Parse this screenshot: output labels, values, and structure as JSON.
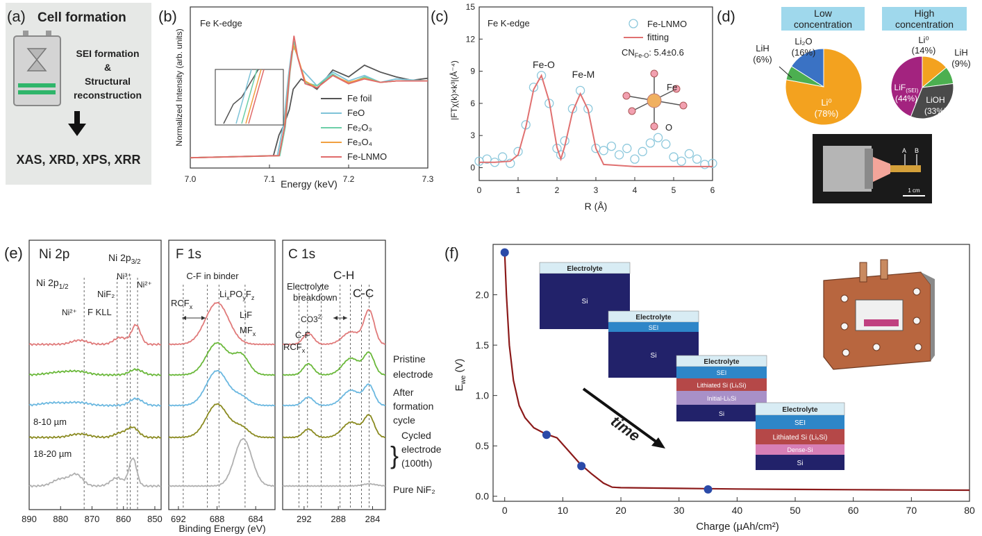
{
  "labels": {
    "a": "(a)",
    "b": "(b)",
    "c": "(c)",
    "d": "(d)",
    "e": "(e)",
    "f": "(f)"
  },
  "panel_a": {
    "title": "Cell formation",
    "line1": "SEI formation",
    "line2": "&",
    "line3": "Structural",
    "line4": "reconstruction",
    "result": "XAS, XRD, XPS, XRR",
    "bg": "#e6e8e6",
    "accent": "#2fb56a"
  },
  "chart_data": [
    {
      "id": "b",
      "type": "line",
      "annotation": "Fe K-edge",
      "xlabel": "Energy (keV)",
      "ylabel": "Normalized Intensity (arb. units)",
      "xlim": [
        7.0,
        7.3
      ],
      "xticks": [
        "7.0",
        "7.1",
        "7.2",
        "7.3"
      ],
      "series": [
        {
          "name": "Fe foil",
          "color": "#555555",
          "x": [
            7.0,
            7.105,
            7.112,
            7.118,
            7.125,
            7.13,
            7.14,
            7.16,
            7.18,
            7.2,
            7.22,
            7.24,
            7.26,
            7.28,
            7.3
          ],
          "y": [
            0.0,
            0.03,
            0.33,
            0.47,
            0.7,
            1.0,
            1.15,
            1.0,
            1.28,
            1.18,
            1.35,
            1.25,
            1.18,
            1.13,
            1.16
          ]
        },
        {
          "name": "FeO",
          "color": "#7ec3d8",
          "x": [
            7.0,
            7.11,
            7.118,
            7.124,
            7.128,
            7.132,
            7.14,
            7.16,
            7.18,
            7.2,
            7.22,
            7.24,
            7.26,
            7.3
          ],
          "y": [
            0.0,
            0.03,
            0.5,
            1.2,
            1.55,
            1.6,
            1.3,
            1.05,
            1.25,
            1.12,
            1.2,
            1.1,
            1.15,
            1.12
          ]
        },
        {
          "name": "Fe₂O₃",
          "color": "#6ccfa8",
          "x": [
            7.0,
            7.113,
            7.12,
            7.126,
            7.131,
            7.136,
            7.145,
            7.16,
            7.18,
            7.2,
            7.22,
            7.24,
            7.26,
            7.3
          ],
          "y": [
            0.0,
            0.03,
            0.45,
            1.25,
            1.7,
            1.45,
            1.1,
            1.05,
            1.22,
            1.08,
            1.18,
            1.1,
            1.12,
            1.12
          ]
        },
        {
          "name": "Fe₃O₄",
          "color": "#f0a040",
          "x": [
            7.0,
            7.112,
            7.119,
            7.125,
            7.13,
            7.135,
            7.145,
            7.16,
            7.18,
            7.2,
            7.22,
            7.24,
            7.26,
            7.3
          ],
          "y": [
            0.0,
            0.03,
            0.45,
            1.2,
            1.65,
            1.5,
            1.12,
            1.02,
            1.2,
            1.1,
            1.16,
            1.1,
            1.12,
            1.12
          ]
        },
        {
          "name": "Fe-LNMO",
          "color": "#e06a6a",
          "x": [
            7.0,
            7.112,
            7.12,
            7.126,
            7.131,
            7.136,
            7.145,
            7.16,
            7.18,
            7.2,
            7.22,
            7.24,
            7.26,
            7.3
          ],
          "y": [
            0.0,
            0.03,
            0.5,
            1.3,
            1.78,
            1.45,
            1.08,
            1.02,
            1.2,
            1.08,
            1.15,
            1.1,
            1.12,
            1.12
          ]
        }
      ]
    },
    {
      "id": "c",
      "type": "line",
      "annotation": "Fe K-edge",
      "xlabel": "R (Å)",
      "ylabel": "|FTχ(k)×k³|(Å⁻⁴)",
      "xlim": [
        0,
        6
      ],
      "ylim": [
        0,
        15
      ],
      "xticks": [
        "0",
        "1",
        "2",
        "3",
        "4",
        "5",
        "6"
      ],
      "yticks": [
        "0",
        "3",
        "6",
        "9",
        "12",
        "15"
      ],
      "peaks": [
        "Fe-O",
        "Fe-M"
      ],
      "cn_label": "CN",
      "cn_sub": "Fe-O",
      "cn_value": ": 5.4±0.6",
      "center_atom": "Fe",
      "ligand_atom": "O",
      "series": [
        {
          "name": "Fe-LNMO",
          "color": "#8cc8dc",
          "style": "circle",
          "x": [
            0,
            0.2,
            0.4,
            0.6,
            0.8,
            1.0,
            1.2,
            1.4,
            1.6,
            1.8,
            2.0,
            2.1,
            2.2,
            2.4,
            2.6,
            2.8,
            3.0,
            3.2,
            3.4,
            3.6,
            3.8,
            4.0,
            4.2,
            4.4,
            4.6,
            4.8,
            5.0,
            5.2,
            5.4,
            5.6,
            5.8,
            6.0
          ],
          "y": [
            0.6,
            0.8,
            0.5,
            1.0,
            0.4,
            1.5,
            4.0,
            7.5,
            8.6,
            6.0,
            1.8,
            1.2,
            2.5,
            5.5,
            7.2,
            5.5,
            1.8,
            1.6,
            2.0,
            1.2,
            1.8,
            0.8,
            1.5,
            2.3,
            2.8,
            2.2,
            1.0,
            0.6,
            1.3,
            0.8,
            0.3,
            0.4
          ]
        },
        {
          "name": "fitting",
          "color": "#e07070",
          "style": "line",
          "x": [
            0,
            0.4,
            0.8,
            1.0,
            1.2,
            1.4,
            1.6,
            1.8,
            2.0,
            2.1,
            2.2,
            2.4,
            2.6,
            2.8,
            3.0,
            3.2,
            3.6,
            4.0,
            5.0,
            6.0
          ],
          "y": [
            0.5,
            0.5,
            0.6,
            1.2,
            3.8,
            7.3,
            8.6,
            6.2,
            1.9,
            0.8,
            2.0,
            5.2,
            6.9,
            5.4,
            1.8,
            0.3,
            0.2,
            0.1,
            0.1,
            0.1
          ]
        }
      ]
    },
    {
      "id": "d-low",
      "type": "pie",
      "title_line1": "Low",
      "title_line2": "concentration",
      "slices": [
        {
          "label": "Li⁰",
          "pct": "(78%)",
          "value": 78,
          "color": "#f3a21f"
        },
        {
          "label": "LiH",
          "pct": "(6%)",
          "value": 6,
          "color": "#4caf50"
        },
        {
          "label": "Li₂O",
          "pct": "(16%)",
          "value": 16,
          "color": "#3a72c4"
        }
      ]
    },
    {
      "id": "d-high",
      "type": "pie",
      "title_line1": "High",
      "title_line2": "concentration",
      "slices": [
        {
          "label": "Li⁰",
          "pct": "(14%)",
          "value": 14,
          "color": "#f3a21f"
        },
        {
          "label": "LiH",
          "pct": "(9%)",
          "value": 9,
          "color": "#4caf50"
        },
        {
          "label": "LiOH",
          "pct": "(33%)",
          "value": 33,
          "color": "#4a4a4a"
        },
        {
          "label": "LiF(SEI)",
          "pct": "(44%)",
          "value": 44,
          "color": "#a3237f"
        }
      ]
    },
    {
      "id": "e-ni",
      "type": "line",
      "title": "Ni 2p",
      "xlim": [
        890,
        848
      ],
      "xticks": [
        "890",
        "880",
        "870",
        "860",
        "850"
      ],
      "annotations": [
        "Ni 2p₁/₂",
        "Ni²⁺",
        "F KLL",
        "NiF₂",
        "Ni 2p₃/₂",
        "Ni³⁺",
        "Ni²⁺",
        "8-10 µm",
        "18-20 µm"
      ]
    },
    {
      "id": "e-f",
      "type": "line",
      "title": "F 1s",
      "xlim": [
        693,
        682
      ],
      "xticks": [
        "692",
        "688",
        "684"
      ],
      "xlabel": "Binding Energy (eV)",
      "annotations": [
        "C-F in binder",
        "RCFₓ",
        "LiₓPOᵧF_z",
        "LiF",
        "MFₓ"
      ]
    },
    {
      "id": "e-c",
      "type": "line",
      "title": "C 1s",
      "xlim": [
        294.5,
        282.5
      ],
      "xticks": [
        "292",
        "288",
        "284"
      ],
      "annotations": [
        "C-H",
        "C-C",
        "Electrolyte",
        "breakdown",
        "CO₃²⁻",
        "C-F",
        "RCFₓ"
      ],
      "legend": [
        "Pristine",
        "electrode",
        "After",
        "formation",
        "cycle",
        "Cycled",
        "electrode",
        "(100th)",
        "Pure NiF₂"
      ]
    },
    {
      "id": "f",
      "type": "line",
      "xlabel": "Charge (µAh/cm²)",
      "ylabel": "E",
      "ylabel_sub": "we",
      "ylabel_unit": "(V)",
      "xlim": [
        -2,
        80
      ],
      "ylim": [
        -0.05,
        2.5
      ],
      "xticks": [
        "0",
        "10",
        "20",
        "30",
        "40",
        "50",
        "60",
        "70",
        "80"
      ],
      "yticks": [
        "0.0",
        "0.5",
        "1.0",
        "1.5",
        "2.0"
      ],
      "annotation": "time",
      "series": [
        {
          "name": "",
          "color": "#8b1a1a",
          "x": [
            0,
            0.3,
            0.8,
            1.5,
            2.5,
            3.5,
            5,
            7,
            9,
            11,
            13,
            15,
            17,
            18.5,
            20,
            30,
            40,
            50,
            60,
            70,
            80
          ],
          "y": [
            2.42,
            2.0,
            1.5,
            1.15,
            0.9,
            0.78,
            0.68,
            0.62,
            0.58,
            0.45,
            0.32,
            0.22,
            0.13,
            0.09,
            0.085,
            0.078,
            0.072,
            0.068,
            0.065,
            0.062,
            0.06
          ]
        }
      ],
      "markers": {
        "x": [
          0,
          7.2,
          13.2,
          35
        ],
        "y": [
          2.42,
          0.61,
          0.3,
          0.068
        ],
        "color": "#2b4aa8"
      },
      "stack_labels": {
        "electrolyte": "Electrolyte",
        "si": "Si",
        "sei": "SEI",
        "lithiated": "Lithiated Si (LiₓSi)",
        "initial": "Initial-LiₓSi",
        "dense": "Dense-Si"
      }
    }
  ],
  "photo": {
    "a": "A",
    "b": "B",
    "scale": "1 cm"
  }
}
